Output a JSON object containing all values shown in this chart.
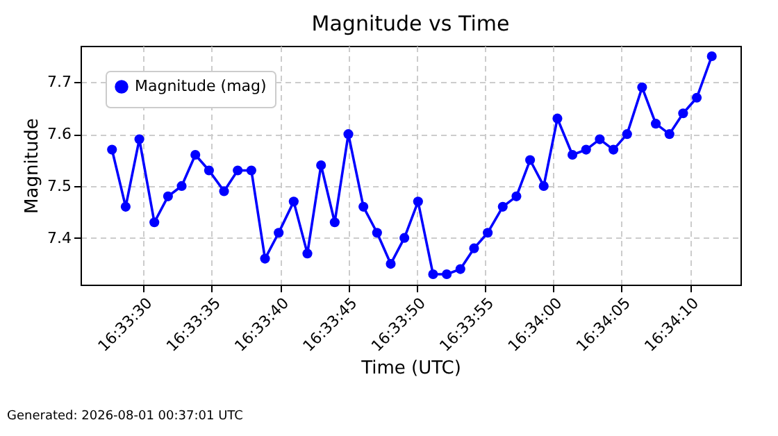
{
  "chart_data": {
    "type": "line",
    "title": "Magnitude vs Time",
    "xlabel": "Time (UTC)",
    "ylabel": "Magnitude",
    "annotations": [
      "Generated: 2026-08-01 00:37:01 UTC"
    ],
    "x": [
      "2026-08-01T16:33:27.7",
      "2026-08-01T16:33:28.7",
      "2026-08-01T16:33:29.7",
      "2026-08-01T16:33:30.8",
      "2026-08-01T16:33:31.8",
      "2026-08-01T16:33:32.8",
      "2026-08-01T16:33:33.8",
      "2026-08-01T16:33:34.8",
      "2026-08-01T16:33:35.9",
      "2026-08-01T16:33:36.9",
      "2026-08-01T16:33:37.9",
      "2026-08-01T16:33:38.9",
      "2026-08-01T16:33:39.9",
      "2026-08-01T16:33:41.0",
      "2026-08-01T16:33:42.0",
      "2026-08-01T16:33:43.0",
      "2026-08-01T16:33:44.0",
      "2026-08-01T16:33:45.0",
      "2026-08-01T16:33:46.1",
      "2026-08-01T16:33:47.1",
      "2026-08-01T16:33:48.1",
      "2026-08-01T16:33:49.1",
      "2026-08-01T16:33:50.1",
      "2026-08-01T16:33:51.2",
      "2026-08-01T16:33:52.2",
      "2026-08-01T16:33:53.2",
      "2026-08-01T16:33:54.2",
      "2026-08-01T16:33:55.2",
      "2026-08-01T16:33:56.3",
      "2026-08-01T16:33:57.3",
      "2026-08-01T16:33:58.3",
      "2026-08-01T16:33:59.3",
      "2026-08-01T16:34:00.3",
      "2026-08-01T16:34:01.4",
      "2026-08-01T16:34:02.4",
      "2026-08-01T16:34:03.4",
      "2026-08-01T16:34:04.4",
      "2026-08-01T16:34:05.4",
      "2026-08-01T16:34:06.5",
      "2026-08-01T16:34:07.5",
      "2026-08-01T16:34:08.5",
      "2026-08-01T16:34:09.5",
      "2026-08-01T16:34:10.5",
      "2026-08-01T16:34:11.6"
    ],
    "series": [
      {
        "name": "Magnitude (mag)",
        "color": "#0000ff",
        "values": [
          7.57,
          7.46,
          7.59,
          7.43,
          7.48,
          7.5,
          7.56,
          7.53,
          7.49,
          7.53,
          7.53,
          7.36,
          7.41,
          7.47,
          7.37,
          7.54,
          7.43,
          7.6,
          7.46,
          7.41,
          7.35,
          7.4,
          7.47,
          7.33,
          7.33,
          7.34,
          7.38,
          7.41,
          7.46,
          7.48,
          7.55,
          7.5,
          7.63,
          7.56,
          7.57,
          7.59,
          7.57,
          7.6,
          7.69,
          7.62,
          7.6,
          7.64,
          7.67,
          7.75
        ]
      }
    ],
    "xlim": [
      "2026-08-01T16:33:25.4",
      "2026-08-01T16:34:13.7"
    ],
    "xticks": [
      {
        "value": "2026-08-01T16:33:30",
        "label": "16:33:30"
      },
      {
        "value": "2026-08-01T16:33:35",
        "label": "16:33:35"
      },
      {
        "value": "2026-08-01T16:33:40",
        "label": "16:33:40"
      },
      {
        "value": "2026-08-01T16:33:45",
        "label": "16:33:45"
      },
      {
        "value": "2026-08-01T16:33:50",
        "label": "16:33:50"
      },
      {
        "value": "2026-08-01T16:33:55",
        "label": "16:33:55"
      },
      {
        "value": "2026-08-01T16:34:00",
        "label": "16:34:00"
      },
      {
        "value": "2026-08-01T16:34:05",
        "label": "16:34:05"
      },
      {
        "value": "2026-08-01T16:34:10",
        "label": "16:34:10"
      }
    ],
    "ylim": [
      7.31,
      7.77
    ],
    "yticks": [
      7.4,
      7.5,
      7.6,
      7.7
    ],
    "grid": true,
    "legend": "top left",
    "marker": "circle",
    "line_style": "solid"
  }
}
